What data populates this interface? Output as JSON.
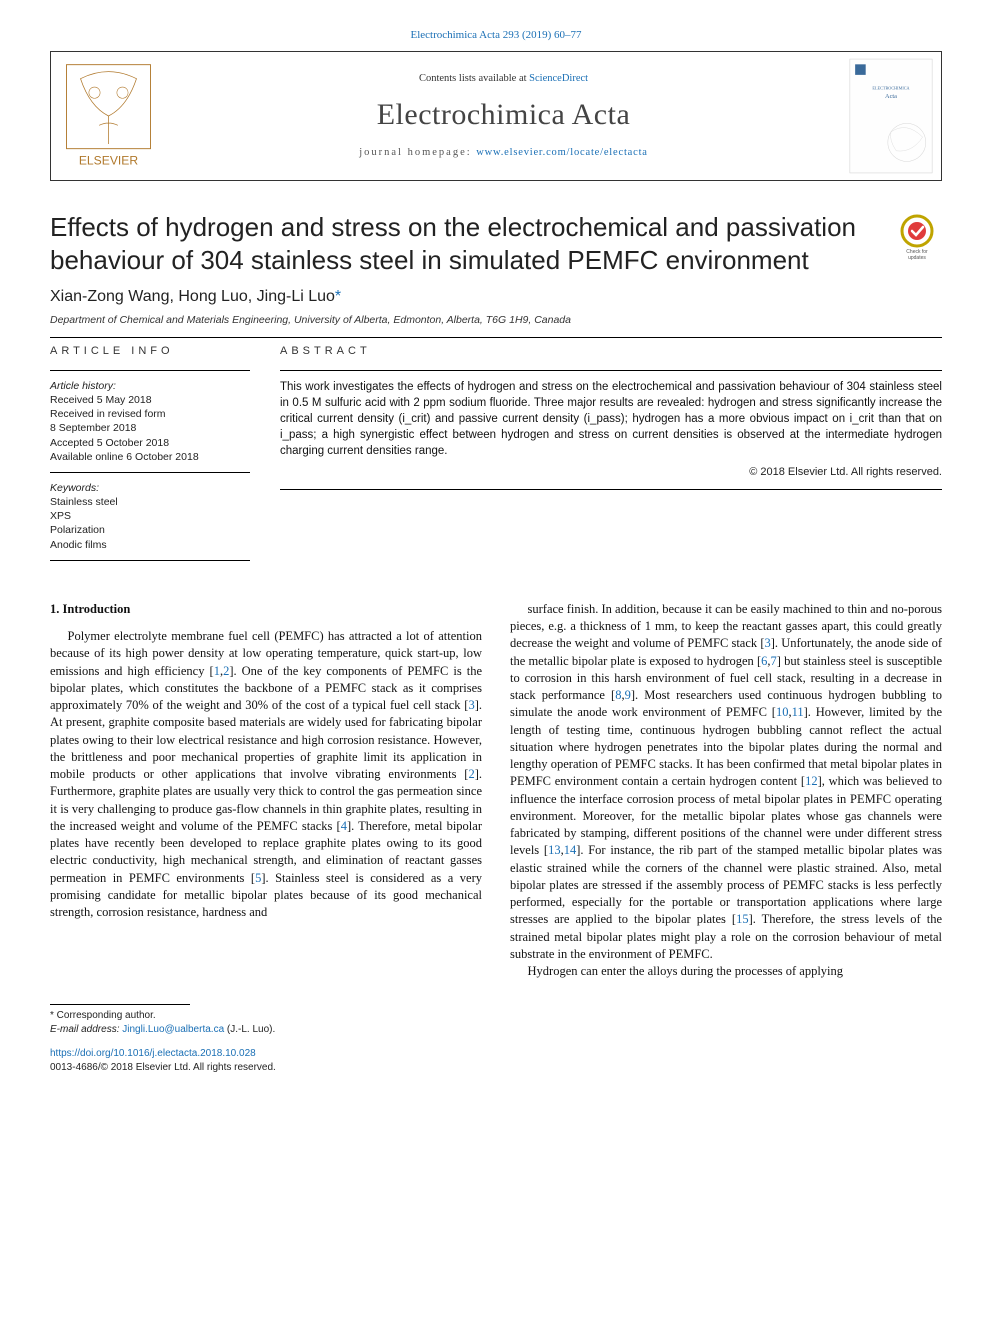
{
  "colors": {
    "link": "#1a6fb5",
    "text": "#111111",
    "rule": "#000000",
    "background": "#ffffff",
    "crossmark_ring": "#bfa400",
    "crossmark_inner": "#ffffff",
    "crossmark_check": "#e03c3c"
  },
  "top_citation": "Electrochimica Acta 293 (2019) 60–77",
  "header": {
    "contents_prefix": "Contents lists available at ",
    "contents_link": "ScienceDirect",
    "journal": "Electrochimica Acta",
    "homepage_prefix": "journal homepage: ",
    "homepage_url": "www.elsevier.com/locate/electacta",
    "publisher_logo_alt": "ELSEVIER"
  },
  "title": "Effects of hydrogen and stress on the electrochemical and passivation behaviour of 304 stainless steel in simulated PEMFC environment",
  "crossmark_caption": "Check for updates",
  "authors": "Xian-Zong Wang, Hong Luo, Jing-Li Luo",
  "author_marker": "*",
  "affiliation": "Department of Chemical and Materials Engineering, University of Alberta, Edmonton, Alberta, T6G 1H9, Canada",
  "article_info": {
    "heading": "article info",
    "history_label": "Article history:",
    "history": [
      "Received 5 May 2018",
      "Received in revised form",
      "8 September 2018",
      "Accepted 5 October 2018",
      "Available online 6 October 2018"
    ],
    "keywords_label": "Keywords:",
    "keywords": [
      "Stainless steel",
      "XPS",
      "Polarization",
      "Anodic films"
    ]
  },
  "abstract": {
    "heading": "abstract",
    "text": "This work investigates the effects of hydrogen and stress on the electrochemical and passivation behaviour of 304 stainless steel in 0.5 M sulfuric acid with 2 ppm sodium fluoride. Three major results are revealed: hydrogen and stress significantly increase the critical current density (i_crit) and passive current density (i_pass); hydrogen has a more obvious impact on i_crit than that on i_pass; a high synergistic effect between hydrogen and stress on current densities is observed at the intermediate hydrogen charging current densities range.",
    "copyright": "© 2018 Elsevier Ltd. All rights reserved."
  },
  "section1": {
    "heading": "1. Introduction",
    "col1": "Polymer electrolyte membrane fuel cell (PEMFC) has attracted a lot of attention because of its high power density at low operating temperature, quick start-up, low emissions and high efficiency [1,2]. One of the key components of PEMFC is the bipolar plates, which constitutes the backbone of a PEMFC stack as it comprises approximately 70% of the weight and 30% of the cost of a typical fuel cell stack [3]. At present, graphite composite based materials are widely used for fabricating bipolar plates owing to their low electrical resistance and high corrosion resistance. However, the brittleness and poor mechanical properties of graphite limit its application in mobile products or other applications that involve vibrating environments [2]. Furthermore, graphite plates are usually very thick to control the gas permeation since it is very challenging to produce gas-flow channels in thin graphite plates, resulting in the increased weight and volume of the PEMFC stacks [4]. Therefore, metal bipolar plates have recently been developed to replace graphite plates owing to its good electric conductivity, high mechanical strength, and elimination of reactant gasses permeation in PEMFC environments [5]. Stainless steel is considered as a very promising candidate for metallic bipolar plates because of its good mechanical strength, corrosion resistance, hardness and",
    "col2": "surface finish. In addition, because it can be easily machined to thin and no-porous pieces, e.g. a thickness of 1 mm, to keep the reactant gasses apart, this could greatly decrease the weight and volume of PEMFC stack [3]. Unfortunately, the anode side of the metallic bipolar plate is exposed to hydrogen [6,7] but stainless steel is susceptible to corrosion in this harsh environment of fuel cell stack, resulting in a decrease in stack performance [8,9]. Most researchers used continuous hydrogen bubbling to simulate the anode work environment of PEMFC [10,11]. However, limited by the length of testing time, continuous hydrogen bubbling cannot reflect the actual situation where hydrogen penetrates into the bipolar plates during the normal and lengthy operation of PEMFC stacks. It has been confirmed that metal bipolar plates in PEMFC environment contain a certain hydrogen content [12], which was believed to influence the interface corrosion process of metal bipolar plates in PEMFC operating environment. Moreover, for the metallic bipolar plates whose gas channels were fabricated by stamping, different positions of the channel were under different stress levels [13,14]. For instance, the rib part of the stamped metallic bipolar plates was elastic strained while the corners of the channel were plastic strained. Also, metal bipolar plates are stressed if the assembly process of PEMFC stacks is less perfectly performed, especially for the portable or transportation applications where large stresses are applied to the bipolar plates [15]. Therefore, the stress levels of the strained metal bipolar plates might play a role on the corrosion behaviour of metal substrate in the environment of PEMFC.",
    "col2_p2": "Hydrogen can enter the alloys during the processes of applying"
  },
  "footer": {
    "corresponding": "* Corresponding author.",
    "email_label": "E-mail address: ",
    "email": "Jingli.Luo@ualberta.ca",
    "email_suffix": " (J.-L. Luo).",
    "doi": "https://doi.org/10.1016/j.electacta.2018.10.028",
    "issn_line": "0013-4686/© 2018 Elsevier Ltd. All rights reserved."
  },
  "refs_col1": [
    "1",
    "2",
    "3",
    "2",
    "4",
    "5"
  ],
  "refs_col2": [
    "3",
    "6",
    "7",
    "8",
    "9",
    "10",
    "11",
    "12",
    "13",
    "14",
    "15"
  ]
}
